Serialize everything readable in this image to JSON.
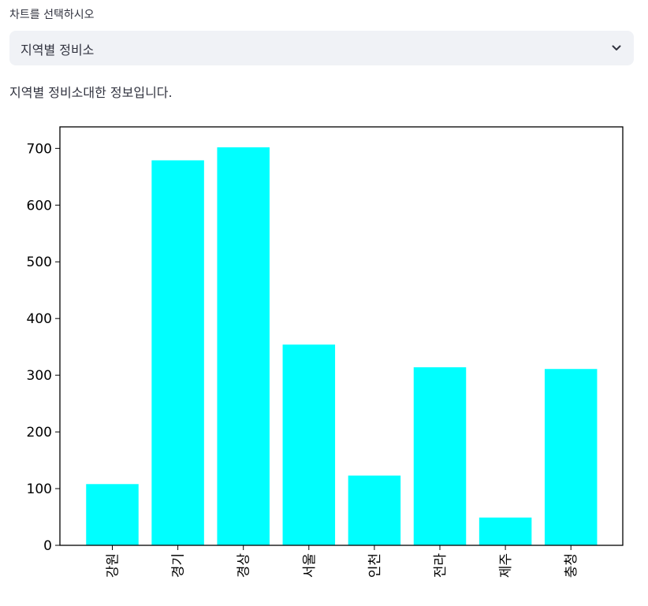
{
  "select": {
    "label": "차트를 선택하시오",
    "value": "지역별 정비소",
    "chevron_icon": "chevron-down-icon"
  },
  "info_text": "지역별 정비소대한 정보입니다.",
  "chart_data": {
    "type": "bar",
    "categories": [
      "강원",
      "경기",
      "경상",
      "서울",
      "인천",
      "전라",
      "제주",
      "충청"
    ],
    "values": [
      108,
      679,
      702,
      354,
      123,
      314,
      49,
      311
    ],
    "ylim": [
      0,
      738
    ],
    "yticks": [
      0,
      100,
      200,
      300,
      400,
      500,
      600,
      700
    ],
    "bar_color": "#00ffff",
    "title": "",
    "xlabel": "",
    "ylabel": "",
    "grid": false
  }
}
